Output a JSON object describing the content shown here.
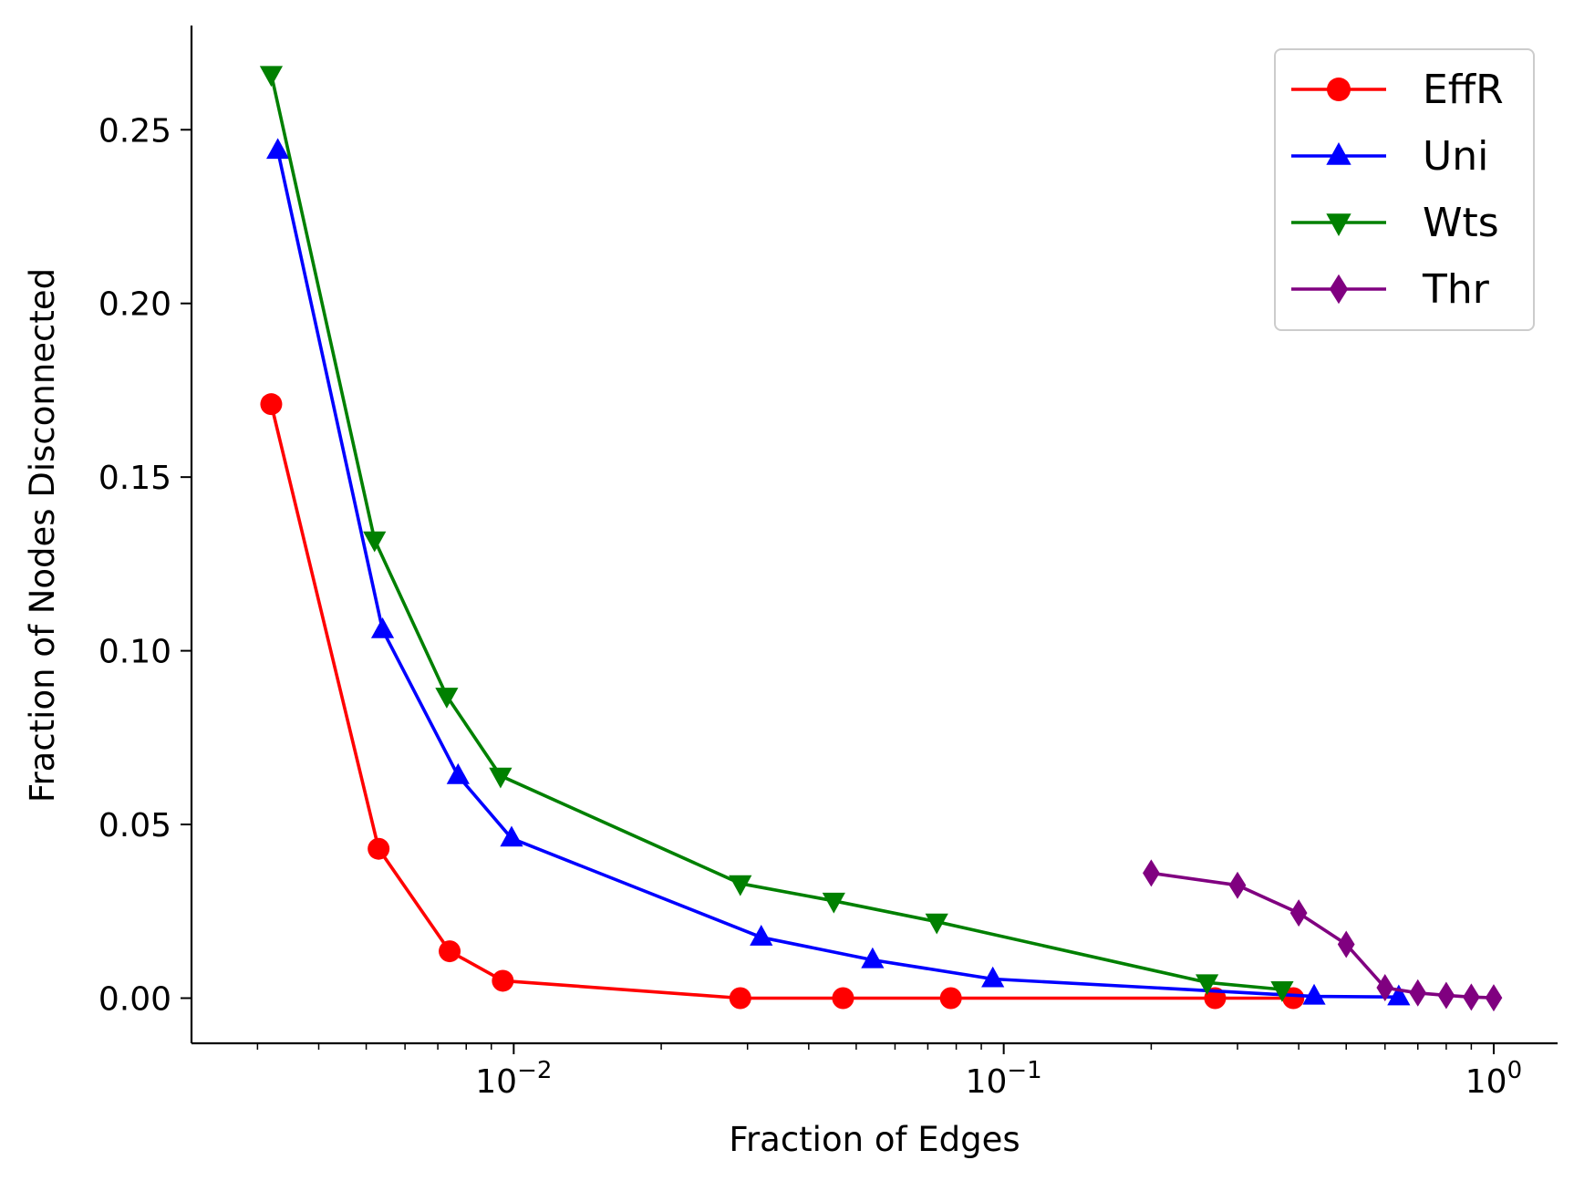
{
  "chart_data": {
    "type": "line",
    "title": "",
    "xlabel": "Fraction of Edges",
    "ylabel": "Fraction of Nodes Disconnected",
    "xscale": "log",
    "xlim": [
      0.0022,
      1.35
    ],
    "ylim": [
      -0.013,
      0.28
    ],
    "x_ticks": [
      {
        "value": 0.01,
        "base": "10",
        "exp": "−2"
      },
      {
        "value": 0.1,
        "base": "10",
        "exp": "−1"
      },
      {
        "value": 1,
        "base": "10",
        "exp": "0"
      }
    ],
    "y_ticks": [
      {
        "value": 0.0,
        "label": "0.00"
      },
      {
        "value": 0.05,
        "label": "0.05"
      },
      {
        "value": 0.1,
        "label": "0.10"
      },
      {
        "value": 0.15,
        "label": "0.15"
      },
      {
        "value": 0.2,
        "label": "0.20"
      },
      {
        "value": 0.25,
        "label": "0.25"
      }
    ],
    "legend_position": "top-right",
    "grid": false,
    "series": [
      {
        "name": "EffR",
        "color": "#ff0000",
        "marker": "circle",
        "points": [
          [
            0.0032,
            0.171
          ],
          [
            0.0053,
            0.043
          ],
          [
            0.0074,
            0.0135
          ],
          [
            0.0095,
            0.005
          ],
          [
            0.029,
            0.0
          ],
          [
            0.047,
            0.0
          ],
          [
            0.078,
            0.0
          ],
          [
            0.27,
            0.0
          ],
          [
            0.39,
            0.0
          ]
        ]
      },
      {
        "name": "Uni",
        "color": "#0000ff",
        "marker": "triangle-up",
        "points": [
          [
            0.0033,
            0.244
          ],
          [
            0.0054,
            0.106
          ],
          [
            0.0077,
            0.064
          ],
          [
            0.0099,
            0.046
          ],
          [
            0.032,
            0.0175
          ],
          [
            0.054,
            0.011
          ],
          [
            0.095,
            0.0055
          ],
          [
            0.43,
            0.0005
          ],
          [
            0.64,
            0.0003
          ]
        ]
      },
      {
        "name": "Wts",
        "color": "#008000",
        "marker": "triangle-down",
        "points": [
          [
            0.0032,
            0.266
          ],
          [
            0.0052,
            0.132
          ],
          [
            0.0073,
            0.087
          ],
          [
            0.0094,
            0.064
          ],
          [
            0.029,
            0.033
          ],
          [
            0.045,
            0.028
          ],
          [
            0.073,
            0.022
          ],
          [
            0.26,
            0.0045
          ],
          [
            0.37,
            0.0025
          ]
        ]
      },
      {
        "name": "Thr",
        "color": "#800080",
        "marker": "diamond",
        "points": [
          [
            0.2,
            0.036
          ],
          [
            0.3,
            0.0325
          ],
          [
            0.4,
            0.0245
          ],
          [
            0.5,
            0.0155
          ],
          [
            0.6,
            0.003
          ],
          [
            0.7,
            0.0015
          ],
          [
            0.8,
            0.0008
          ],
          [
            0.9,
            0.0003
          ],
          [
            1.0,
            0.0001
          ]
        ]
      }
    ]
  }
}
